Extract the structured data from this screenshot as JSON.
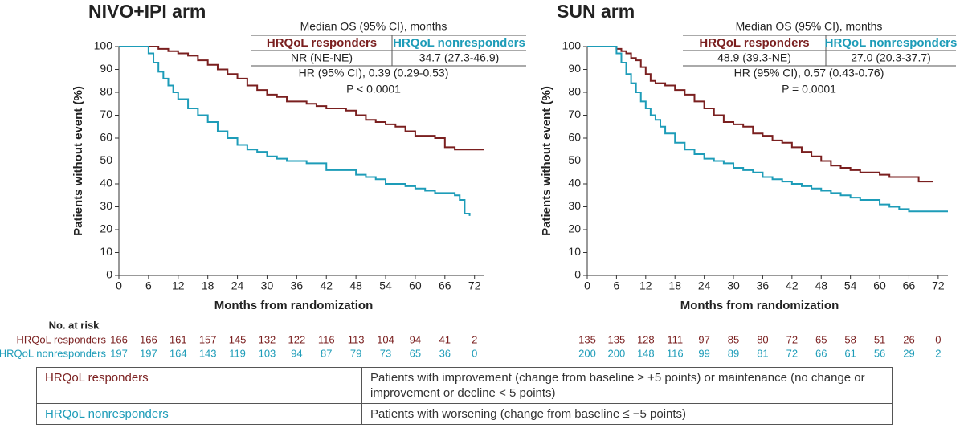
{
  "chart_data": [
    {
      "type": "step",
      "title": "NIVO+IPI arm",
      "x_label": "Months from randomization",
      "y_label": "Patients without event (%)",
      "xlim": [
        0,
        74
      ],
      "ylim": [
        0,
        100
      ],
      "xticks": [
        0,
        6,
        12,
        18,
        24,
        30,
        36,
        42,
        48,
        54,
        60,
        66,
        72
      ],
      "yticks": [
        0,
        10,
        20,
        30,
        40,
        50,
        60,
        70,
        80,
        90,
        100
      ],
      "hline": 50,
      "series": [
        {
          "name": "HRQoL responders",
          "color": "#7a1f1f",
          "x": [
            0,
            6,
            8,
            10,
            12,
            14,
            16,
            18,
            20,
            22,
            24,
            26,
            28,
            30,
            32,
            34,
            38,
            40,
            42,
            46,
            48,
            50,
            52,
            54,
            56,
            58,
            60,
            64,
            66,
            68,
            74
          ],
          "values": [
            100,
            100,
            99,
            98,
            97,
            96,
            94,
            92,
            90,
            88,
            86,
            83,
            81,
            79,
            78,
            76,
            75,
            74,
            73,
            72,
            70,
            68,
            67,
            66,
            65,
            63,
            61,
            60,
            56,
            55,
            55
          ]
        },
        {
          "name": "HRQoL nonresponders",
          "color": "#1d9cb8",
          "x": [
            0,
            5,
            6,
            7,
            8,
            9,
            10,
            11,
            12,
            14,
            16,
            18,
            20,
            22,
            24,
            26,
            28,
            30,
            32,
            34,
            38,
            42,
            48,
            50,
            52,
            54,
            58,
            60,
            62,
            64,
            68,
            69,
            70,
            71
          ],
          "values": [
            100,
            100,
            97,
            93,
            89,
            86,
            83,
            80,
            77,
            73,
            70,
            67,
            63,
            60,
            57,
            55,
            54,
            52,
            51,
            50,
            49,
            46,
            44,
            43,
            42,
            40,
            39,
            38,
            37,
            36,
            35,
            33,
            27,
            26
          ]
        }
      ],
      "median_header": "Median OS (95% CI), months",
      "medians": [
        "NR (NE-NE)",
        "34.7 (27.3-46.9)"
      ],
      "hr": "HR (95% CI), 0.39 (0.29-0.53)",
      "p": "P < 0.0001",
      "at_risk": {
        "title": "No. at risk",
        "rows": [
          {
            "name": "HRQoL responders",
            "values": [
              "166",
              "166",
              "161",
              "157",
              "145",
              "132",
              "122",
              "116",
              "113",
              "104",
              "94",
              "41",
              "2"
            ]
          },
          {
            "name": "HRQoL nonresponders",
            "values": [
              "197",
              "197",
              "164",
              "143",
              "119",
              "103",
              "94",
              "87",
              "79",
              "73",
              "65",
              "36",
              "0"
            ]
          }
        ]
      }
    },
    {
      "type": "step",
      "title": "SUN arm",
      "x_label": "Months from randomization",
      "y_label": "Patients without event (%)",
      "xlim": [
        0,
        74
      ],
      "ylim": [
        0,
        100
      ],
      "xticks": [
        0,
        6,
        12,
        18,
        24,
        30,
        36,
        42,
        48,
        54,
        60,
        66,
        72
      ],
      "yticks": [
        0,
        10,
        20,
        30,
        40,
        50,
        60,
        70,
        80,
        90,
        100
      ],
      "hline": 50,
      "series": [
        {
          "name": "HRQoL responders",
          "color": "#7a1f1f",
          "x": [
            0,
            5,
            6,
            7,
            8,
            9,
            10,
            11,
            12,
            13,
            14,
            16,
            18,
            20,
            22,
            24,
            26,
            28,
            30,
            32,
            34,
            36,
            38,
            40,
            42,
            44,
            46,
            48,
            50,
            52,
            54,
            56,
            60,
            62,
            68,
            71
          ],
          "values": [
            100,
            100,
            99,
            98,
            97,
            95,
            94,
            91,
            88,
            85,
            84,
            83,
            81,
            79,
            76,
            73,
            70,
            67,
            66,
            65,
            62,
            61,
            59,
            58,
            56,
            54,
            52,
            50,
            48,
            47,
            46,
            45,
            44,
            43,
            41,
            41
          ]
        },
        {
          "name": "HRQoL nonresponders",
          "color": "#1d9cb8",
          "x": [
            0,
            5,
            6,
            7,
            8,
            9,
            10,
            11,
            12,
            13,
            14,
            15,
            16,
            18,
            20,
            22,
            24,
            26,
            28,
            30,
            32,
            34,
            36,
            38,
            40,
            42,
            44,
            46,
            48,
            50,
            52,
            54,
            56,
            60,
            62,
            64,
            66,
            74
          ],
          "values": [
            100,
            100,
            97,
            93,
            88,
            84,
            80,
            76,
            73,
            70,
            68,
            65,
            62,
            58,
            55,
            53,
            51,
            50,
            49,
            47,
            46,
            45,
            43,
            42,
            41,
            40,
            39,
            38,
            37,
            36,
            35,
            34,
            33,
            31,
            30,
            29,
            28,
            28
          ]
        }
      ],
      "median_header": "Median OS (95% CI), months",
      "medians": [
        "48.9 (39.3-NE)",
        "27.0 (20.3-37.7)"
      ],
      "hr": "HR (95% CI), 0.57 (0.43-0.76)",
      "p": "P = 0.0001",
      "at_risk": {
        "rows": [
          {
            "values": [
              "135",
              "135",
              "128",
              "111",
              "97",
              "85",
              "80",
              "72",
              "65",
              "58",
              "51",
              "26",
              "0"
            ]
          },
          {
            "values": [
              "200",
              "200",
              "148",
              "116",
              "99",
              "89",
              "81",
              "72",
              "66",
              "61",
              "56",
              "29",
              "2"
            ]
          }
        ]
      }
    }
  ],
  "definitions": [
    {
      "term": "HRQoL responders",
      "description": "Patients with improvement (change from baseline ≥ +5 points) or maintenance (no change or improvement or decline < 5 points)"
    },
    {
      "term": "HRQoL nonresponders",
      "description": "Patients with worsening (change from baseline ≤ −5 points)"
    }
  ]
}
